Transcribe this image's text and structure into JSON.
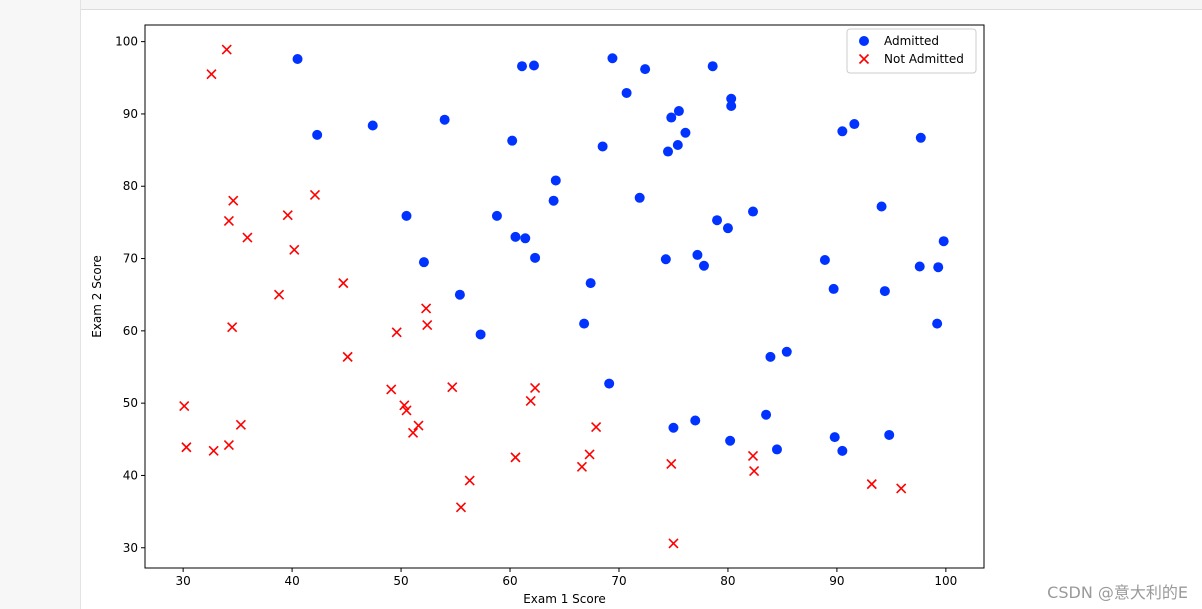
{
  "watermark": "CSDN @意大利的E",
  "chart_data": {
    "type": "scatter",
    "xlabel": "Exam 1 Score",
    "ylabel": "Exam 2 Score",
    "xlim": [
      26.5,
      103.5
    ],
    "ylim": [
      27.2,
      102.3
    ],
    "xticks": [
      30,
      40,
      50,
      60,
      70,
      80,
      90,
      100
    ],
    "yticks": [
      30,
      40,
      50,
      60,
      70,
      80,
      90,
      100
    ],
    "grid": false,
    "legend_position": "top-right",
    "series": [
      {
        "name": "Admitted",
        "marker": "circle",
        "color": "#0033ff",
        "points": [
          [
            40.5,
            97.6
          ],
          [
            42.3,
            87.1
          ],
          [
            47.4,
            88.4
          ],
          [
            54.0,
            89.2
          ],
          [
            61.1,
            96.6
          ],
          [
            62.2,
            96.7
          ],
          [
            69.4,
            97.7
          ],
          [
            72.4,
            96.2
          ],
          [
            78.6,
            96.6
          ],
          [
            70.7,
            92.9
          ],
          [
            80.3,
            92.1
          ],
          [
            80.3,
            91.1
          ],
          [
            60.2,
            86.3
          ],
          [
            68.5,
            85.5
          ],
          [
            74.8,
            89.5
          ],
          [
            75.5,
            90.4
          ],
          [
            76.1,
            87.4
          ],
          [
            75.4,
            85.7
          ],
          [
            74.5,
            84.8
          ],
          [
            90.5,
            87.6
          ],
          [
            91.6,
            88.6
          ],
          [
            97.7,
            86.7
          ],
          [
            64.2,
            80.8
          ],
          [
            64.0,
            78.0
          ],
          [
            71.9,
            78.4
          ],
          [
            50.5,
            75.9
          ],
          [
            58.8,
            75.9
          ],
          [
            60.5,
            73.0
          ],
          [
            61.4,
            72.8
          ],
          [
            79.0,
            75.3
          ],
          [
            80.0,
            74.2
          ],
          [
            82.3,
            76.5
          ],
          [
            94.1,
            77.2
          ],
          [
            52.1,
            69.5
          ],
          [
            62.3,
            70.1
          ],
          [
            74.3,
            69.9
          ],
          [
            77.2,
            70.5
          ],
          [
            77.8,
            69.0
          ],
          [
            88.9,
            69.8
          ],
          [
            97.6,
            68.9
          ],
          [
            99.3,
            68.8
          ],
          [
            99.8,
            72.4
          ],
          [
            67.4,
            66.6
          ],
          [
            89.7,
            65.8
          ],
          [
            94.4,
            65.5
          ],
          [
            55.4,
            65.0
          ],
          [
            66.8,
            61.0
          ],
          [
            57.3,
            59.5
          ],
          [
            99.2,
            61.0
          ],
          [
            83.9,
            56.4
          ],
          [
            85.4,
            57.1
          ],
          [
            69.1,
            52.7
          ],
          [
            83.5,
            48.4
          ],
          [
            77.0,
            47.6
          ],
          [
            75.0,
            46.6
          ],
          [
            94.8,
            45.6
          ],
          [
            89.8,
            45.3
          ],
          [
            80.2,
            44.8
          ],
          [
            84.5,
            43.6
          ],
          [
            90.5,
            43.4
          ]
        ]
      },
      {
        "name": "Not Admitted",
        "marker": "x",
        "color": "#ff0000",
        "points": [
          [
            34.0,
            98.9
          ],
          [
            32.6,
            95.5
          ],
          [
            34.6,
            78.0
          ],
          [
            42.1,
            78.8
          ],
          [
            34.2,
            75.2
          ],
          [
            35.9,
            72.9
          ],
          [
            39.6,
            76.0
          ],
          [
            40.2,
            71.2
          ],
          [
            44.7,
            66.6
          ],
          [
            38.8,
            65.0
          ],
          [
            34.5,
            60.5
          ],
          [
            52.3,
            63.1
          ],
          [
            52.4,
            60.8
          ],
          [
            49.6,
            59.8
          ],
          [
            45.1,
            56.4
          ],
          [
            49.1,
            51.9
          ],
          [
            54.7,
            52.2
          ],
          [
            62.3,
            52.1
          ],
          [
            61.9,
            50.3
          ],
          [
            50.3,
            49.7
          ],
          [
            50.5,
            49.0
          ],
          [
            30.1,
            49.6
          ],
          [
            35.3,
            47.0
          ],
          [
            51.6,
            46.9
          ],
          [
            51.1,
            45.9
          ],
          [
            67.9,
            46.7
          ],
          [
            34.2,
            44.2
          ],
          [
            30.3,
            43.9
          ],
          [
            32.8,
            43.4
          ],
          [
            60.5,
            42.5
          ],
          [
            67.3,
            42.9
          ],
          [
            66.6,
            41.2
          ],
          [
            74.8,
            41.6
          ],
          [
            82.3,
            42.7
          ],
          [
            82.4,
            40.6
          ],
          [
            56.3,
            39.3
          ],
          [
            93.2,
            38.8
          ],
          [
            95.9,
            38.2
          ],
          [
            55.5,
            35.6
          ],
          [
            75.0,
            30.6
          ]
        ]
      }
    ]
  }
}
